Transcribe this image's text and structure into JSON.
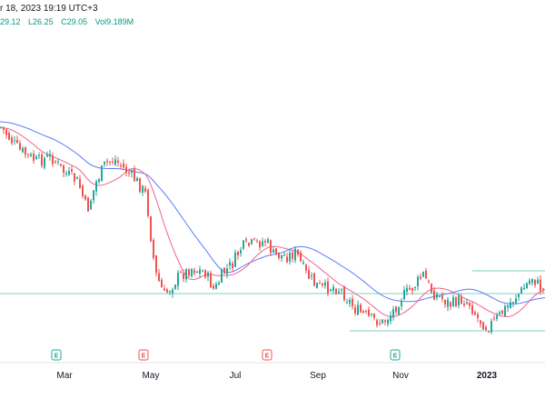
{
  "header": {
    "timestamp": "r 18, 2023 19:19 UTC+3",
    "ohlc": [
      "29.12",
      "L26.25",
      "C29.05",
      "Vol9.189M"
    ]
  },
  "chart_data": {
    "type": "candlestick",
    "x_ticks": [
      "Mar",
      "May",
      "Jul",
      "Sep",
      "Nov",
      "2023"
    ],
    "earnings_markers": [
      {
        "label": "E",
        "type": "neutral"
      },
      {
        "label": "E",
        "type": "negative"
      },
      {
        "label": "E",
        "type": "negative"
      },
      {
        "label": "E",
        "type": "neutral"
      }
    ],
    "horizontal_levels": [
      "support",
      "resistance",
      "lower-support"
    ],
    "colors": {
      "up": "#26a69a",
      "down": "#ef5350",
      "ma_fast": "#f06292",
      "ma_slow": "#5c7cfa",
      "level": "#7fd1c8",
      "axis_text": "#131722"
    }
  }
}
